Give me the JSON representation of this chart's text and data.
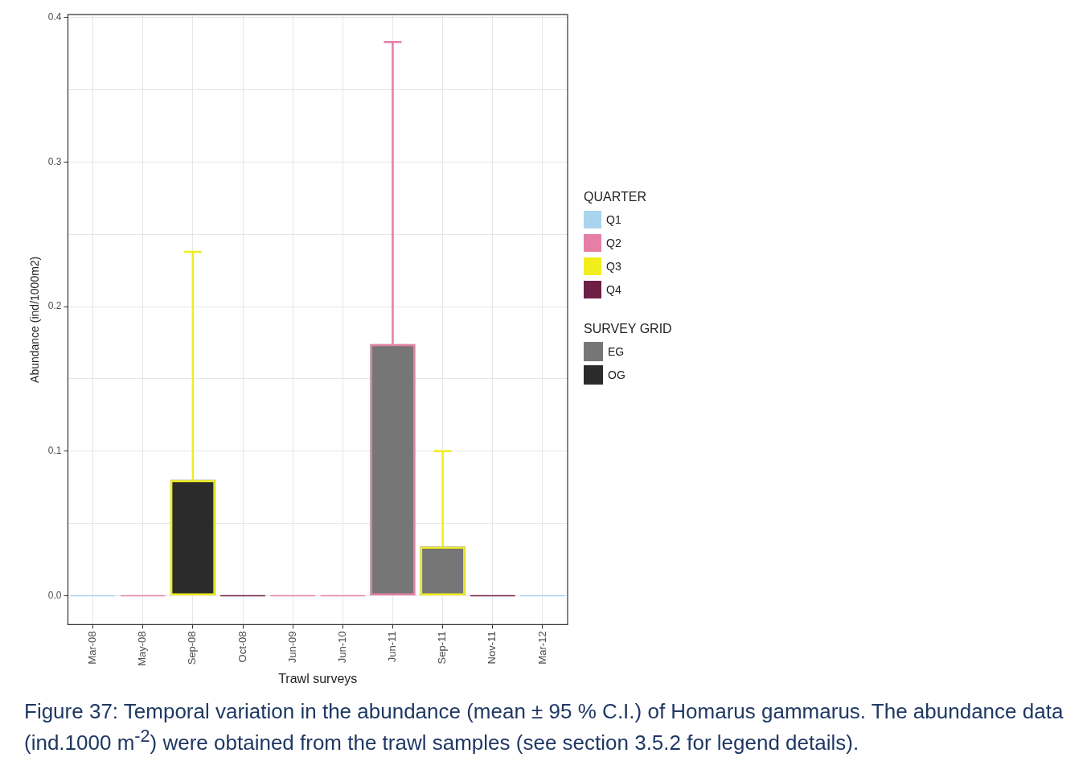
{
  "chart_data": {
    "type": "bar",
    "xlabel": "Trawl surveys",
    "ylabel": "Abundance (ind/1000m2)",
    "categories": [
      "Mar-08",
      "May-08",
      "Sep-08",
      "Oct-08",
      "Jun-09",
      "Jun-10",
      "Jun-11",
      "Sep-11",
      "Nov-11",
      "Mar-12"
    ],
    "series": [
      {
        "name": "EG",
        "color": "#767676",
        "values": [
          null,
          null,
          null,
          null,
          null,
          null,
          0.174,
          0.034,
          null,
          null
        ]
      },
      {
        "name": "OG",
        "color": "#2b2b2b",
        "values": [
          null,
          null,
          0.08,
          null,
          null,
          null,
          null,
          null,
          null,
          null
        ]
      },
      {
        "name": "Q1",
        "color": "#a9d4ee",
        "values": [
          0,
          null,
          null,
          null,
          null,
          null,
          null,
          null,
          null,
          0
        ]
      },
      {
        "name": "Q2",
        "color": "#e57fa6",
        "values": [
          null,
          0,
          null,
          null,
          0,
          0,
          0.174,
          null,
          null,
          null
        ],
        "errors": [
          null,
          null,
          null,
          null,
          null,
          null,
          [
            0.174,
            0.383
          ],
          null,
          null,
          null
        ]
      },
      {
        "name": "Q3",
        "color": "#f0ee1c",
        "values": [
          null,
          null,
          0.08,
          null,
          null,
          null,
          null,
          0.034,
          null,
          null
        ],
        "errors": [
          null,
          null,
          [
            0.08,
            0.238
          ],
          null,
          null,
          null,
          null,
          [
            0.034,
            0.1
          ],
          null,
          null
        ]
      },
      {
        "name": "Q4",
        "color": "#6e1f45",
        "values": [
          null,
          null,
          null,
          0,
          null,
          null,
          null,
          null,
          0,
          null
        ]
      }
    ],
    "legend_title": "QUARTER",
    "legend": "right",
    "ylim": [
      -0.02,
      0.402
    ],
    "yticks": [
      {
        "value": 0,
        "label": "0.0"
      },
      {
        "value": 0.05,
        "label": null
      },
      {
        "value": 0.1,
        "label": "0.1"
      },
      {
        "value": 0.15,
        "label": null
      },
      {
        "value": 0.2,
        "label": "0.2"
      },
      {
        "value": 0.25,
        "label": null
      },
      {
        "value": 0.3,
        "label": "0.3"
      },
      {
        "value": 0.35,
        "label": null
      },
      {
        "value": 0.4,
        "label": "0.4"
      }
    ],
    "grid": true,
    "annotations": [
      "SURVEY GRID",
      "Figure 37: Temporal variation in the abundance (mean ± 95 % C.I.) of Homarus gammarus. The abundance data (ind.1000 m$^{-2}$) were obtained from the trawl samples (see section 3.5.2 for legend details)."
    ]
  }
}
